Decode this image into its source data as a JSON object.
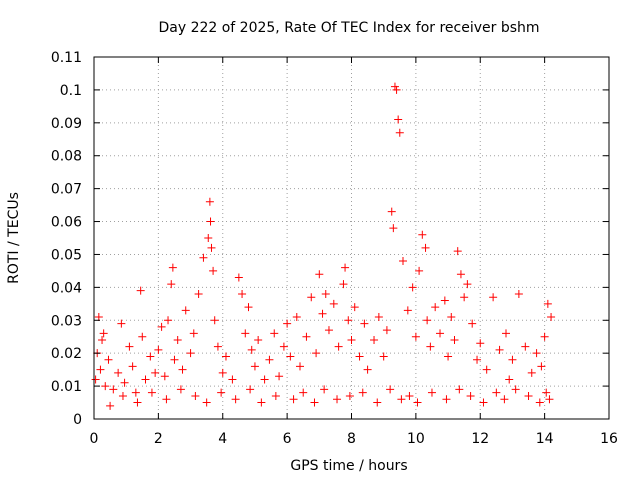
{
  "chart_data": {
    "type": "scatter",
    "title": "Day 222 of 2025, Rate Of TEC Index for receiver bshm",
    "xlabel": "GPS time / hours",
    "ylabel": "ROTI / TECUs",
    "xlim": [
      0,
      16
    ],
    "ylim": [
      0,
      0.11
    ],
    "xticks": [
      0,
      2,
      4,
      6,
      8,
      10,
      12,
      14,
      16
    ],
    "yticks": [
      0,
      0.01,
      0.02,
      0.03,
      0.04,
      0.05,
      0.06,
      0.07,
      0.08,
      0.09,
      0.1,
      0.11
    ],
    "xtick_labels": [
      "0",
      "2",
      "4",
      "6",
      "8",
      "10",
      "12",
      "14",
      "16"
    ],
    "ytick_labels": [
      "0",
      "0.01",
      "0.02",
      "0.03",
      "0.04",
      "0.05",
      "0.06",
      "0.07",
      "0.08",
      "0.09",
      "0.1",
      "0.11"
    ],
    "grid": true,
    "marker": "+",
    "marker_color": "#ff0000",
    "series": [
      {
        "name": "ROTI",
        "x": [
          0.05,
          0.1,
          0.15,
          0.2,
          0.25,
          0.35,
          0.45,
          0.6,
          0.75,
          0.85,
          0.95,
          1.1,
          1.2,
          1.3,
          1.45,
          1.5,
          1.6,
          1.75,
          1.9,
          2.0,
          2.1,
          2.2,
          2.3,
          2.4,
          2.45,
          2.5,
          2.6,
          2.75,
          2.85,
          3.0,
          3.1,
          3.25,
          3.4,
          3.55,
          3.6,
          3.62,
          3.65,
          3.7,
          3.75,
          3.85,
          4.0,
          4.1,
          4.3,
          4.5,
          4.6,
          4.7,
          4.8,
          4.9,
          5.0,
          5.1,
          5.3,
          5.45,
          5.6,
          5.75,
          5.9,
          6.0,
          6.1,
          6.3,
          6.4,
          6.6,
          6.75,
          6.9,
          7.0,
          7.1,
          7.2,
          7.3,
          7.45,
          7.6,
          7.75,
          7.8,
          7.9,
          8.0,
          8.1,
          8.25,
          8.4,
          8.5,
          8.7,
          8.85,
          9.0,
          9.1,
          9.25,
          9.3,
          9.35,
          9.4,
          9.45,
          9.5,
          9.6,
          9.75,
          9.9,
          10.0,
          10.1,
          10.2,
          10.3,
          10.35,
          10.45,
          10.6,
          10.75,
          10.9,
          11.0,
          11.1,
          11.2,
          11.3,
          11.4,
          11.5,
          11.6,
          11.75,
          11.9,
          12.0,
          12.2,
          12.4,
          12.6,
          12.8,
          12.9,
          13.0,
          13.2,
          13.4,
          13.6,
          13.75,
          13.9,
          14.0,
          14.1,
          14.2,
          0.3,
          0.5,
          0.9,
          1.35,
          1.8,
          2.25,
          2.7,
          3.15,
          3.5,
          3.95,
          4.4,
          4.85,
          5.2,
          5.65,
          6.2,
          6.5,
          6.85,
          7.15,
          7.55,
          7.95,
          8.35,
          8.8,
          9.2,
          9.55,
          9.8,
          10.05,
          10.5,
          10.95,
          11.35,
          11.7,
          12.1,
          12.5,
          12.75,
          13.1,
          13.5,
          13.85,
          14.05,
          14.15
        ],
        "y": [
          0.012,
          0.02,
          0.031,
          0.015,
          0.024,
          0.01,
          0.018,
          0.009,
          0.014,
          0.029,
          0.011,
          0.022,
          0.016,
          0.008,
          0.039,
          0.025,
          0.012,
          0.019,
          0.014,
          0.021,
          0.028,
          0.013,
          0.03,
          0.041,
          0.046,
          0.018,
          0.024,
          0.015,
          0.033,
          0.02,
          0.026,
          0.038,
          0.049,
          0.055,
          0.066,
          0.06,
          0.052,
          0.045,
          0.03,
          0.022,
          0.014,
          0.019,
          0.012,
          0.043,
          0.038,
          0.026,
          0.034,
          0.021,
          0.016,
          0.024,
          0.012,
          0.018,
          0.026,
          0.013,
          0.022,
          0.029,
          0.019,
          0.031,
          0.016,
          0.025,
          0.037,
          0.02,
          0.044,
          0.032,
          0.038,
          0.027,
          0.035,
          0.022,
          0.041,
          0.046,
          0.03,
          0.024,
          0.034,
          0.019,
          0.029,
          0.015,
          0.024,
          0.031,
          0.019,
          0.027,
          0.063,
          0.058,
          0.101,
          0.1,
          0.091,
          0.087,
          0.048,
          0.033,
          0.04,
          0.025,
          0.045,
          0.056,
          0.052,
          0.03,
          0.022,
          0.034,
          0.026,
          0.036,
          0.019,
          0.031,
          0.024,
          0.051,
          0.044,
          0.037,
          0.041,
          0.029,
          0.018,
          0.023,
          0.015,
          0.037,
          0.021,
          0.026,
          0.012,
          0.018,
          0.038,
          0.022,
          0.014,
          0.02,
          0.016,
          0.025,
          0.035,
          0.031,
          0.026,
          0.004,
          0.007,
          0.005,
          0.008,
          0.006,
          0.009,
          0.007,
          0.005,
          0.008,
          0.006,
          0.009,
          0.005,
          0.007,
          0.006,
          0.008,
          0.005,
          0.009,
          0.006,
          0.007,
          0.008,
          0.005,
          0.009,
          0.006,
          0.007,
          0.005,
          0.008,
          0.006,
          0.009,
          0.007,
          0.005,
          0.008,
          0.006,
          0.009,
          0.007,
          0.005,
          0.008,
          0.006
        ]
      }
    ]
  }
}
